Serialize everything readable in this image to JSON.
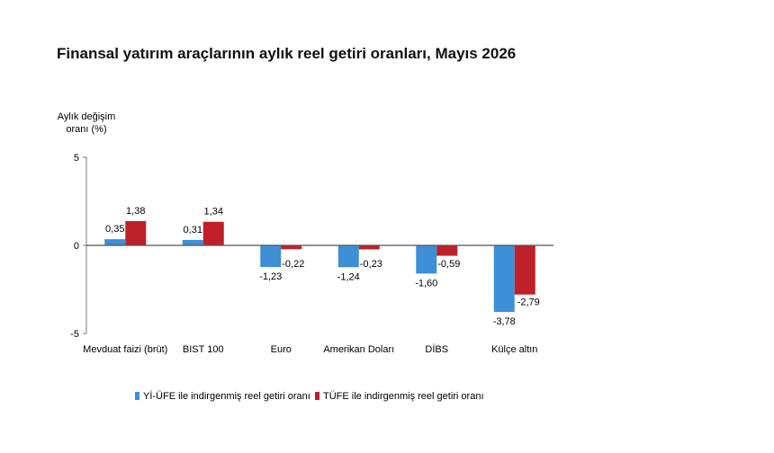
{
  "chart_data": {
    "type": "bar",
    "title": "Finansal yatırım araçlarının aylık reel getiri oranları, Mayıs 2026",
    "ylabel_lines": [
      "Aylık değişim",
      "oranı (%)"
    ],
    "xlabel": "",
    "categories": [
      "Mevduat faizi (brüt)",
      "BIST 100",
      "Euro",
      "Amerikan Doları",
      "DİBS",
      "Külçe altın"
    ],
    "series": [
      {
        "name": "Yİ-ÜFE ile indirgenmiş reel getiri oranı",
        "color": "#3d8fd6",
        "values": [
          0.35,
          0.31,
          -1.23,
          -1.24,
          -1.6,
          -3.78
        ],
        "labels": [
          "0,35",
          "0,31",
          "-1,23",
          "-1,24",
          "-1,60",
          "-3,78"
        ]
      },
      {
        "name": "TÜFE ile indirgenmiş reel getiri oranı",
        "color": "#c0202a",
        "values": [
          1.38,
          1.34,
          -0.22,
          -0.23,
          -0.59,
          -2.79
        ],
        "labels": [
          "1,38",
          "1,34",
          "-0,22",
          "-0,23",
          "-0,59",
          "-2,79"
        ]
      }
    ],
    "ylim": [
      -5,
      5
    ],
    "yticks": [
      5,
      0,
      -5
    ],
    "ytick_labels": [
      "5",
      "0",
      "-5"
    ],
    "grid": false,
    "legend_position": "bottom"
  }
}
